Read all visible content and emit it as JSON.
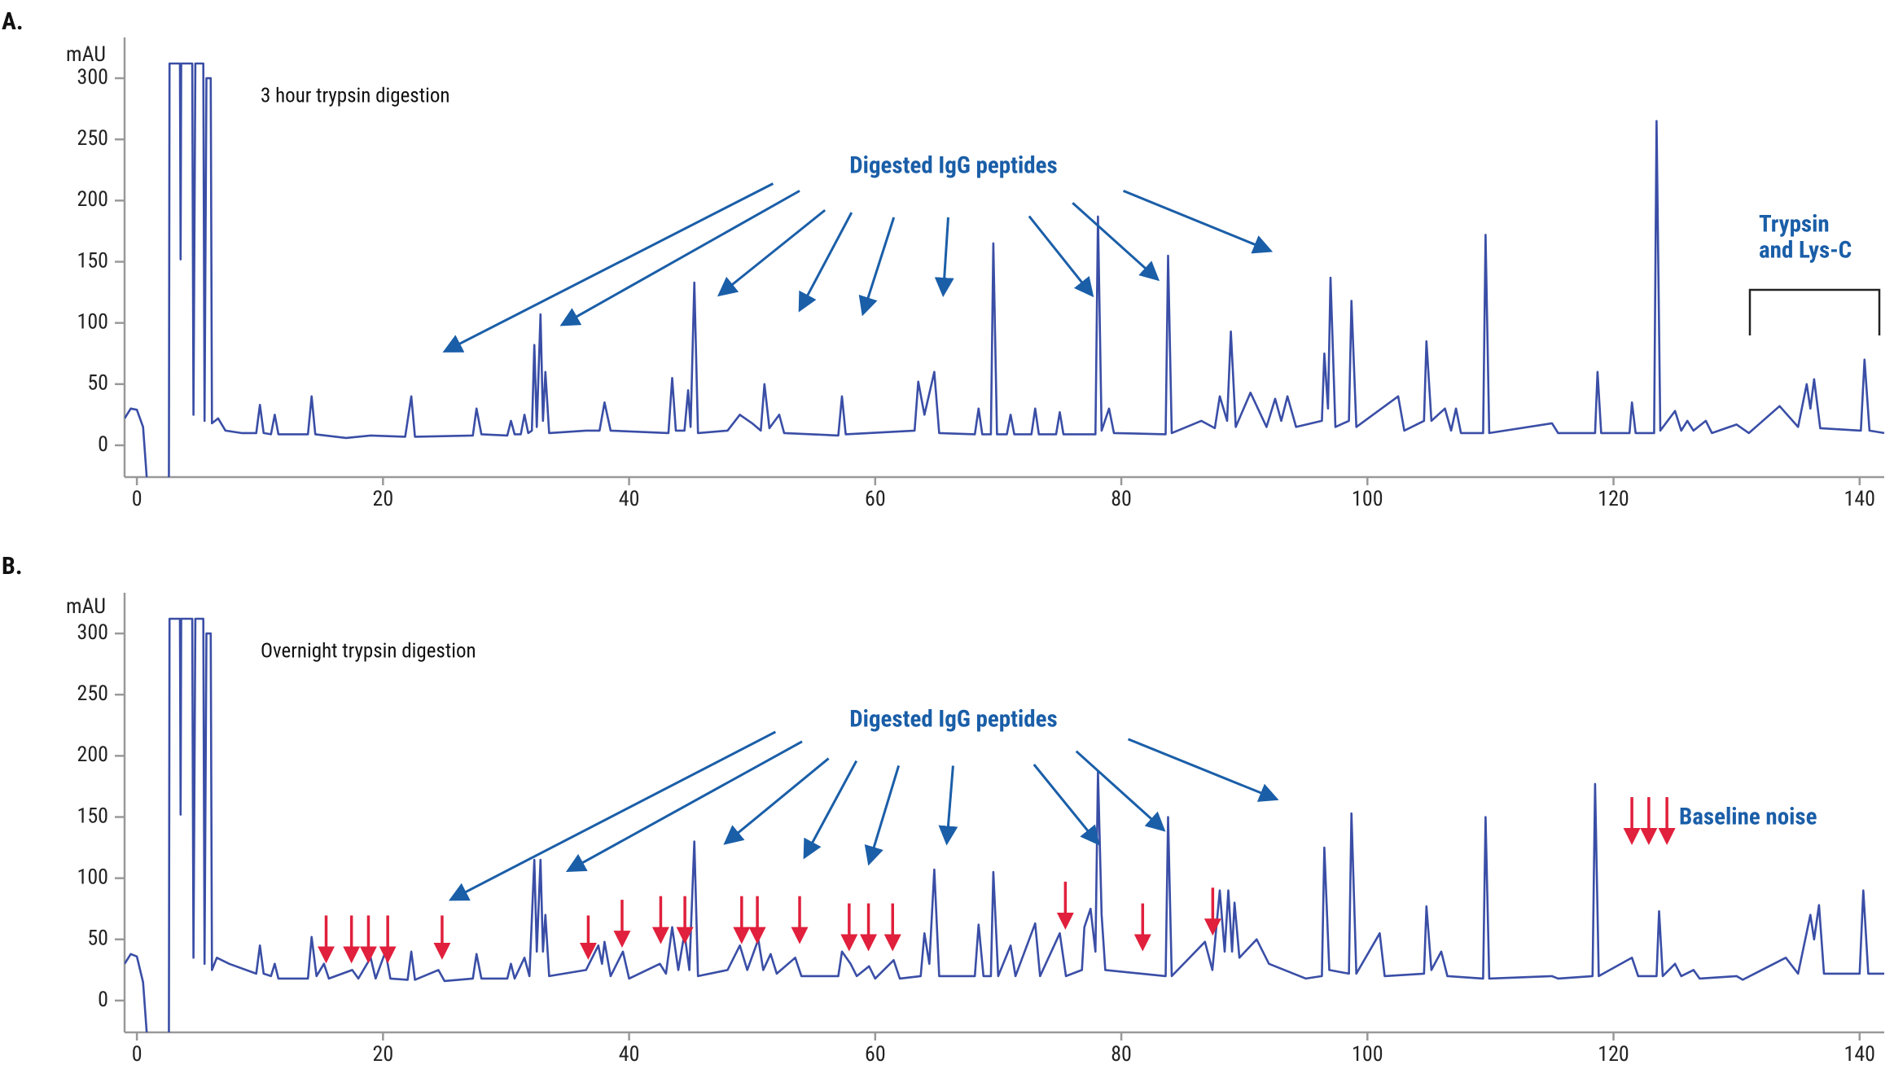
{
  "chart_data": [
    {
      "type": "line",
      "panel_label": "A.",
      "y_label": "mAU",
      "subtitle": "3 hour trypsin digestion",
      "annotations": [
        "Digested IgG peptides",
        "Trypsin",
        "and Lys-C"
      ],
      "xlim": [
        -1,
        142
      ],
      "ylim": [
        -26,
        320
      ],
      "xticks": [
        0,
        20,
        40,
        60,
        80,
        100,
        120,
        140
      ],
      "yticks": [
        0,
        50,
        100,
        150,
        200,
        250,
        300
      ],
      "x": [
        -1,
        -0.5,
        0,
        0.5,
        0.9,
        2.6,
        2.65,
        3.5,
        3.55,
        3.6,
        4.5,
        4.6,
        4.75,
        5.4,
        5.5,
        5.65,
        6.0,
        6.1,
        6.6,
        7.2,
        8.5,
        9.7,
        10,
        10.3,
        10.9,
        11.2,
        11.5,
        13.9,
        14.2,
        14.5,
        17,
        19,
        21.8,
        22.3,
        22.6,
        27.3,
        27.6,
        28,
        30.1,
        30.4,
        30.7,
        31.2,
        31.5,
        31.8,
        32.1,
        32.3,
        32.5,
        32.8,
        33,
        33.2,
        33.5,
        36.5,
        37.6,
        38,
        38.5,
        43.2,
        43.5,
        43.8,
        44.5,
        44.8,
        45,
        45.3,
        45.6,
        48,
        49,
        50,
        50.7,
        51,
        51.4,
        52.2,
        52.6,
        57,
        57.3,
        57.6,
        63.2,
        63.5,
        64,
        64.8,
        65.2,
        68.1,
        68.4,
        68.7,
        69.4,
        69.6,
        69.9,
        70.7,
        71,
        71.3,
        72.7,
        73,
        73.3,
        74.7,
        75,
        75.3,
        77.9,
        78.1,
        78.4,
        79,
        79.4,
        83.6,
        83.8,
        84.1,
        86.5,
        87.6,
        88,
        88.6,
        88.9,
        89.3,
        90.5,
        91.8,
        92.5,
        93,
        93.5,
        94.2,
        96.3,
        96.5,
        96.8,
        97,
        97.4,
        98.5,
        98.7,
        99.1,
        102.5,
        103,
        104.6,
        104.8,
        105.2,
        106.3,
        106.8,
        107.2,
        107.6,
        109.4,
        109.6,
        109.9,
        115,
        115.5,
        118.5,
        118.7,
        119,
        121.3,
        121.5,
        121.8,
        123.3,
        123.5,
        123.8,
        125,
        125.5,
        126,
        126.5,
        127.5,
        128,
        130,
        131,
        133.5,
        135,
        135.7,
        136,
        136.3,
        136.8,
        140.1,
        140.4,
        140.8,
        142
      ],
      "series": [
        {
          "color": "#3a4ea6",
          "values": [
            22,
            30,
            29,
            15,
            -40,
            -40,
            312,
            312,
            152,
            312,
            312,
            25,
            312,
            312,
            20,
            300,
            300,
            18,
            22,
            12,
            10,
            10,
            33,
            10,
            9,
            25,
            9,
            9,
            40,
            9,
            6,
            8,
            7,
            40,
            7,
            8,
            30,
            9,
            8,
            20,
            9,
            9,
            25,
            10,
            12,
            82,
            15,
            107,
            20,
            60,
            10,
            12,
            12,
            35,
            12,
            10,
            55,
            12,
            12,
            45,
            15,
            133,
            10,
            12,
            25,
            18,
            12,
            50,
            14,
            25,
            10,
            8,
            40,
            9,
            12,
            52,
            25,
            60,
            10,
            9,
            30,
            9,
            9,
            165,
            9,
            9,
            25,
            9,
            9,
            30,
            9,
            9,
            27,
            9,
            9,
            187,
            12,
            30,
            10,
            9,
            155,
            10,
            20,
            14,
            40,
            20,
            93,
            15,
            43,
            15,
            38,
            20,
            40,
            15,
            20,
            75,
            30,
            137,
            15,
            20,
            118,
            15,
            40,
            12,
            20,
            85,
            20,
            30,
            12,
            30,
            10,
            10,
            172,
            10,
            18,
            10,
            10,
            60,
            10,
            10,
            35,
            10,
            10,
            265,
            12,
            28,
            12,
            20,
            12,
            20,
            10,
            17,
            10,
            32,
            15,
            50,
            30,
            54,
            14,
            12,
            70,
            12,
            10
          ]
        }
      ]
    },
    {
      "type": "line",
      "panel_label": "B.",
      "y_label": "mAU",
      "subtitle": "Overnight trypsin digestion",
      "annotations": [
        "Digested IgG peptides",
        "Baseline noise"
      ],
      "xlim": [
        -1,
        142
      ],
      "ylim": [
        -26,
        320
      ],
      "xticks": [
        0,
        20,
        40,
        60,
        80,
        100,
        120,
        140
      ],
      "yticks": [
        0,
        50,
        100,
        150,
        200,
        250,
        300
      ],
      "x": [
        -1,
        -0.5,
        0,
        0.5,
        0.9,
        2.6,
        2.65,
        3.5,
        3.55,
        3.6,
        4.5,
        4.6,
        4.75,
        5.4,
        5.5,
        5.65,
        6.0,
        6.1,
        6.5,
        7.5,
        9.7,
        10,
        10.3,
        10.9,
        11.2,
        11.5,
        13.9,
        14.2,
        14.6,
        15.2,
        15.6,
        17.5,
        18,
        19,
        19.4,
        20.2,
        20.6,
        22,
        22.3,
        22.6,
        24.5,
        25,
        27.3,
        27.6,
        28,
        30.1,
        30.4,
        30.7,
        31.5,
        31.9,
        32.3,
        32.5,
        32.8,
        33,
        33.2,
        33.5,
        36.5,
        37.5,
        37.8,
        38,
        38.5,
        39.5,
        40,
        42.5,
        43,
        43.5,
        44,
        44.5,
        44.9,
        45.3,
        45.6,
        48,
        49,
        49.6,
        50.5,
        50.9,
        51.5,
        52,
        53.5,
        54,
        57,
        57.3,
        58,
        58.5,
        59.5,
        60,
        61.5,
        62,
        63.7,
        64,
        64.4,
        64.8,
        65.2,
        68.1,
        68.4,
        68.8,
        69.4,
        69.6,
        70,
        71,
        71.4,
        73,
        73.4,
        75,
        75.5,
        76.8,
        77,
        77.5,
        77.9,
        78.1,
        78.4,
        78.7,
        83.6,
        83.8,
        84.1,
        86.8,
        87.4,
        88,
        88.4,
        88.7,
        89,
        89.2,
        89.6,
        91,
        92,
        95,
        96.3,
        96.5,
        96.9,
        98.5,
        98.7,
        99.1,
        101,
        101.4,
        104.6,
        104.8,
        105.2,
        106,
        106.5,
        109.4,
        109.6,
        109.9,
        115,
        115.5,
        118.3,
        118.5,
        118.8,
        121.5,
        122,
        123.5,
        123.7,
        124,
        125,
        125.5,
        126.5,
        127,
        130,
        130.5,
        134,
        135,
        136,
        136.3,
        136.7,
        137.1,
        140,
        140.3,
        140.7,
        142
      ],
      "series": [
        {
          "color": "#3a4ea6",
          "values": [
            30,
            38,
            36,
            15,
            -40,
            -40,
            312,
            312,
            152,
            312,
            312,
            35,
            312,
            312,
            30,
            300,
            300,
            25,
            35,
            30,
            22,
            45,
            22,
            20,
            30,
            18,
            18,
            52,
            20,
            30,
            18,
            25,
            18,
            35,
            18,
            40,
            18,
            17,
            40,
            17,
            25,
            16,
            18,
            38,
            18,
            18,
            30,
            18,
            35,
            20,
            115,
            40,
            115,
            40,
            70,
            20,
            25,
            45,
            30,
            48,
            20,
            40,
            18,
            30,
            22,
            60,
            25,
            55,
            25,
            130,
            20,
            25,
            45,
            25,
            50,
            25,
            38,
            22,
            35,
            20,
            20,
            40,
            30,
            20,
            28,
            18,
            33,
            18,
            20,
            55,
            30,
            107,
            20,
            20,
            62,
            20,
            20,
            105,
            20,
            45,
            20,
            63,
            20,
            55,
            20,
            25,
            60,
            75,
            40,
            187,
            70,
            25,
            20,
            150,
            20,
            48,
            25,
            90,
            40,
            90,
            40,
            80,
            35,
            50,
            30,
            18,
            20,
            125,
            25,
            22,
            153,
            22,
            55,
            20,
            22,
            77,
            25,
            40,
            20,
            18,
            150,
            18,
            20,
            18,
            20,
            177,
            20,
            35,
            20,
            20,
            73,
            20,
            30,
            20,
            25,
            18,
            20,
            17,
            35,
            22,
            70,
            50,
            78,
            22,
            22,
            90,
            22,
            22
          ]
        }
      ]
    }
  ]
}
